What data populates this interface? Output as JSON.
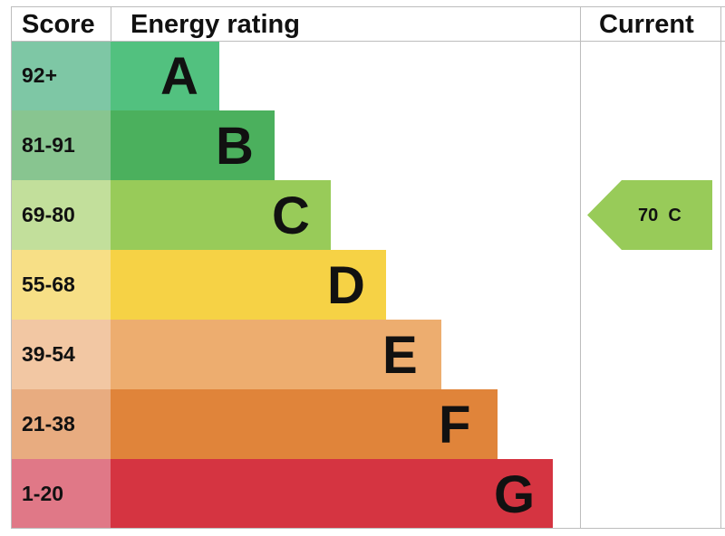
{
  "headers": {
    "score": "Score",
    "energy_rating": "Energy rating",
    "current": "Current"
  },
  "chart_data": {
    "type": "bar",
    "categories": [
      "A",
      "B",
      "C",
      "D",
      "E",
      "F",
      "G"
    ],
    "bands": [
      {
        "letter": "A",
        "range": "92+",
        "color": "#52c17f",
        "score_color": "#7ec7a5"
      },
      {
        "letter": "B",
        "range": "81-91",
        "color": "#4bb05d",
        "score_color": "#88c590"
      },
      {
        "letter": "C",
        "range": "69-80",
        "color": "#98cb59",
        "score_color": "#c2df9b"
      },
      {
        "letter": "D",
        "range": "55-68",
        "color": "#f6d245",
        "score_color": "#f7df86"
      },
      {
        "letter": "E",
        "range": "39-54",
        "color": "#edad6f",
        "score_color": "#f2c7a3"
      },
      {
        "letter": "F",
        "range": "21-38",
        "color": "#e0843a",
        "score_color": "#e8ac80"
      },
      {
        "letter": "G",
        "range": "1-20",
        "color": "#d53441",
        "score_color": "#e07887"
      }
    ],
    "current": {
      "score": "70",
      "band": "C",
      "color": "#98cb59"
    }
  }
}
